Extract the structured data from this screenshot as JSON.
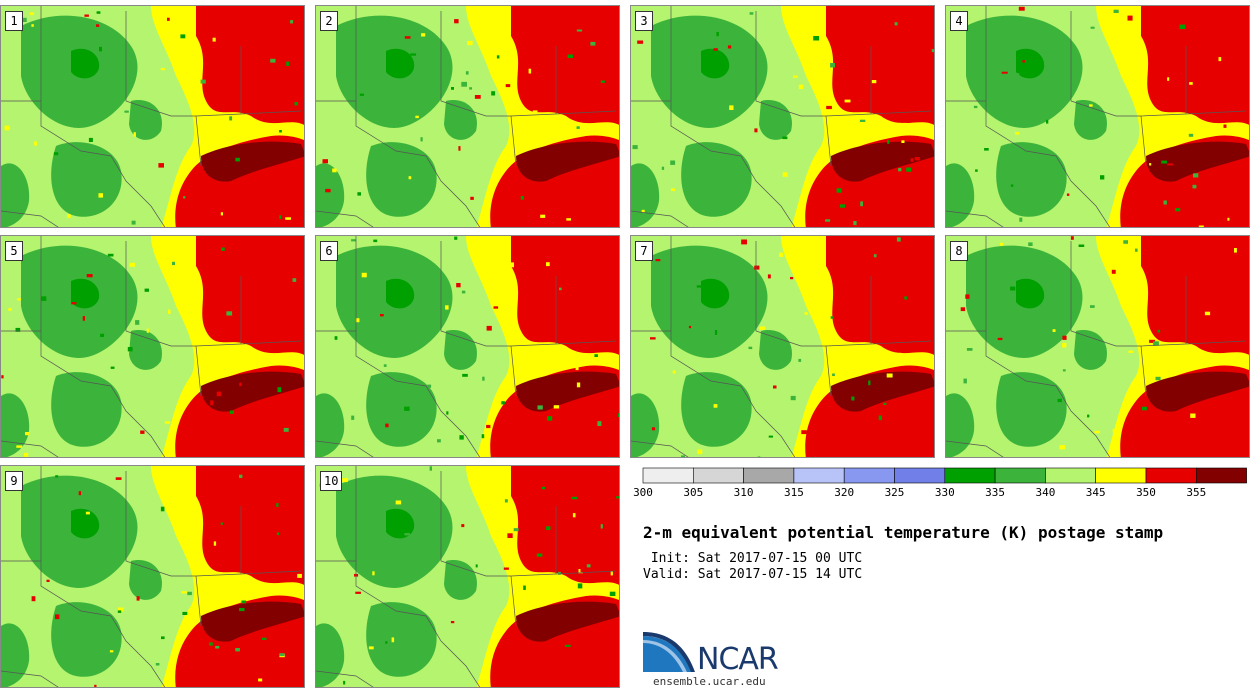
{
  "title": "2-m equivalent potential temperature (K) postage stamp",
  "init_text": " Init: Sat 2017-07-15 00 UTC",
  "valid_text": "Valid: Sat 2017-07-15 14 UTC",
  "logo_text": "NCAR",
  "logo_url": "ensemble.ucar.edu",
  "members": [
    "1",
    "2",
    "3",
    "4",
    "5",
    "6",
    "7",
    "8",
    "9",
    "10"
  ],
  "legend": {
    "tick_labels": [
      "300",
      "305",
      "310",
      "315",
      "320",
      "325",
      "330",
      "335",
      "340",
      "345",
      "350",
      "355"
    ],
    "colors": [
      "#eeeeee",
      "#d6d6d6",
      "#a8a8a8",
      "#b8c4f8",
      "#8898f0",
      "#7080e8",
      "#00a000",
      "#3cb43c",
      "#b4f46e",
      "#ffff00",
      "#e60000",
      "#820000"
    ]
  },
  "map_colors": {
    "gulf_hot": "#e60000",
    "gulf_very_hot": "#820000",
    "plains_green": "#3cb43c",
    "dark_green": "#00a000",
    "light_green": "#b4f46e",
    "yellow": "#ffff00",
    "border": "#555555",
    "lake": "#4a78e8"
  }
}
